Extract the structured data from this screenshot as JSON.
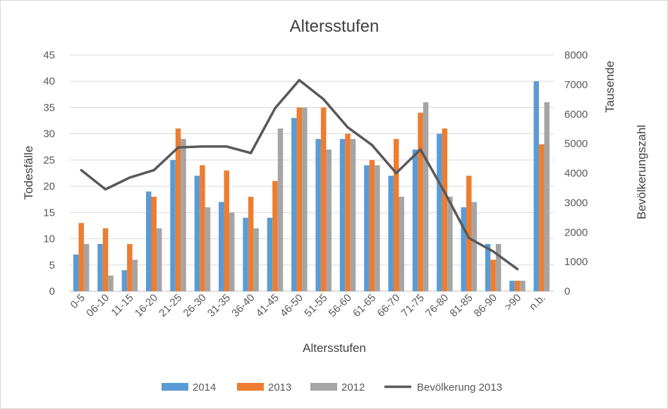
{
  "chart_data": {
    "type": "bar",
    "title": "Altersstufen",
    "xlabel": "Altersstufen",
    "ylabel": "Todesfälle",
    "y2label_line1": "Tausende",
    "y2label_line2": "Bevölkerungszahl",
    "ylim": [
      0,
      45
    ],
    "y_ticks": [
      0,
      5,
      10,
      15,
      20,
      25,
      30,
      35,
      40,
      45
    ],
    "y2lim": [
      0,
      8000
    ],
    "y2_ticks": [
      0,
      1000,
      2000,
      3000,
      4000,
      5000,
      6000,
      7000,
      8000
    ],
    "grid": true,
    "legend_position": "bottom",
    "categories": [
      "0-5",
      "06-10",
      "11-15",
      "16-20",
      "21-25",
      "26-30",
      "31-35",
      "36-40",
      "41-45",
      "46-50",
      "51-55",
      "56-60",
      "61-65",
      "66-70",
      "71-75",
      "76-80",
      "81-85",
      "86-90",
      ">90",
      "n.b."
    ],
    "series": [
      {
        "name": "2014",
        "type": "bar",
        "color": "#5b9bd5",
        "values": [
          7,
          9,
          4,
          19,
          25,
          22,
          17,
          14,
          14,
          33,
          29,
          29,
          24,
          22,
          27,
          30,
          16,
          9,
          2,
          40
        ]
      },
      {
        "name": "2013",
        "type": "bar",
        "color": "#ed7d31",
        "values": [
          13,
          12,
          9,
          18,
          31,
          24,
          23,
          18,
          21,
          35,
          35,
          30,
          25,
          29,
          34,
          31,
          22,
          6,
          2,
          28
        ]
      },
      {
        "name": "2012",
        "type": "bar",
        "color": "#a5a5a5",
        "values": [
          9,
          3,
          6,
          12,
          29,
          16,
          15,
          12,
          31,
          35,
          27,
          29,
          24,
          18,
          36,
          18,
          17,
          9,
          2,
          36
        ]
      },
      {
        "name": "Bevölkerung 2013",
        "type": "line",
        "axis": "y2",
        "color": "#595959",
        "values": [
          4100,
          3450,
          3850,
          4100,
          4870,
          4900,
          4900,
          4680,
          6200,
          7150,
          6500,
          5550,
          4950,
          4000,
          4800,
          3350,
          1800,
          1350,
          750,
          null
        ]
      }
    ]
  }
}
